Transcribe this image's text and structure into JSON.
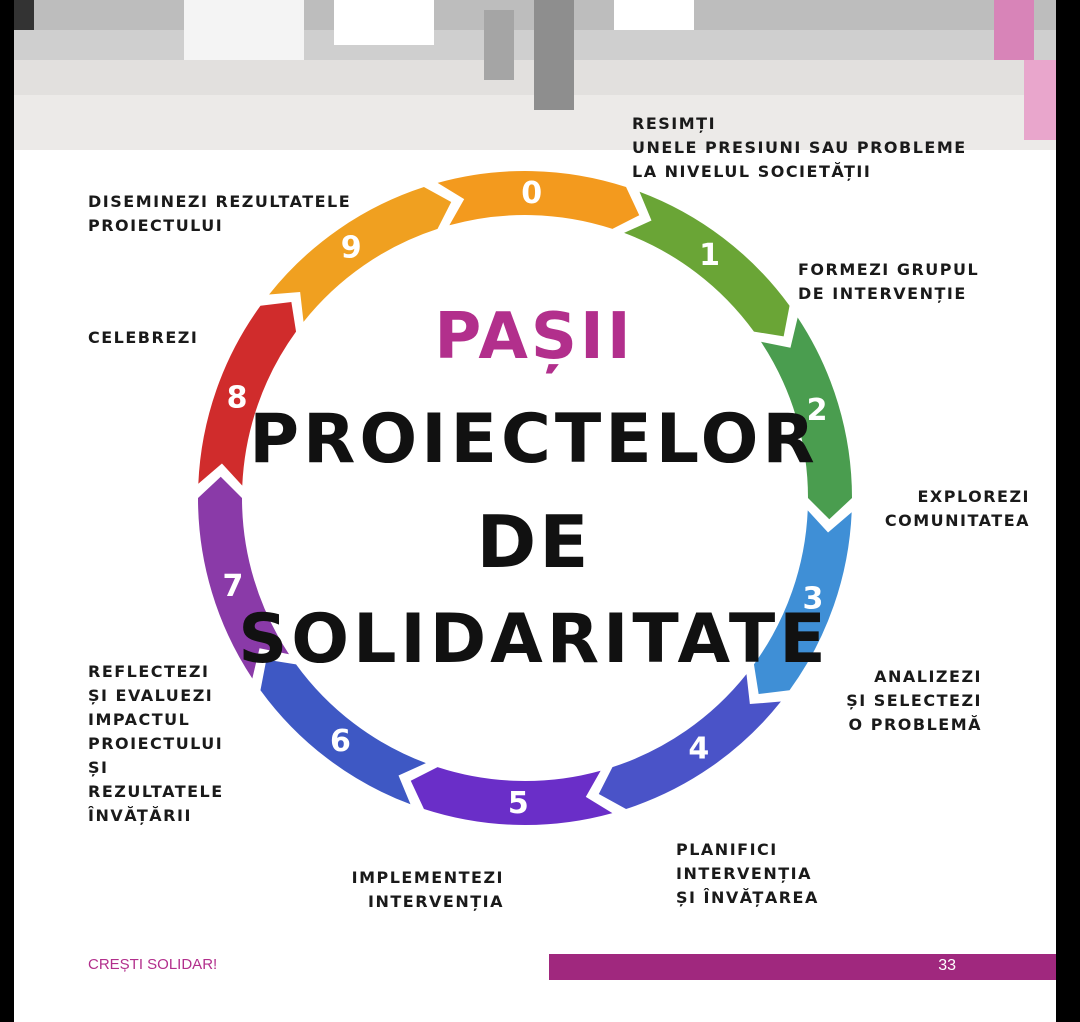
{
  "diagram": {
    "title_line1": "PAȘII",
    "title_line2": "PROIECTELOR",
    "title_line3": "DE",
    "title_line4": "SOLIDARITATE",
    "title_color": "#b22f8c",
    "steps": [
      {
        "number": "0",
        "lines": [
          "RESIMȚI",
          "UNELE PRESIUNI SAU PROBLEME",
          "LA NIVELUL SOCIETĂȚII"
        ],
        "color": "#f39a1e"
      },
      {
        "number": "1",
        "lines": [
          "FORMEZI GRUPUL",
          "DE INTERVENȚIE"
        ],
        "color": "#6aa536"
      },
      {
        "number": "2",
        "lines": [
          "EXPLOREZI",
          "COMUNITATEA"
        ],
        "color": "#4a9d4f"
      },
      {
        "number": "3",
        "lines": [
          "ANALIZEZI",
          "ȘI SELECTEZI",
          "O PROBLEMĂ"
        ],
        "color": "#3f8fd6"
      },
      {
        "number": "4",
        "lines": [
          "PLANIFICI",
          "INTERVENȚIA",
          "ȘI ÎNVĂȚAREA"
        ],
        "color": "#4a53c8"
      },
      {
        "number": "5",
        "lines": [
          "IMPLEMENTEZI",
          "INTERVENȚIA"
        ],
        "color": "#6a2ec8"
      },
      {
        "number": "6",
        "lines": [
          "REFLECTEZI",
          "ȘI EVALUEZI",
          "IMPACTUL",
          "PROIECTULUI",
          "ȘI",
          "REZULTATELE",
          "ÎNVĂȚĂRII"
        ],
        "color": "#3e58c4"
      },
      {
        "number": "7",
        "lines": [],
        "color": "#8a3aa8"
      },
      {
        "number": "8",
        "lines": [
          "CELEBREZI"
        ],
        "color": "#d02c2c"
      },
      {
        "number": "9",
        "lines": [
          "DISEMINEZI REZULTATELE",
          "PROIECTULUI"
        ],
        "color": "#f0a020"
      }
    ]
  },
  "footer": {
    "brand": "CREȘTI SOLIDAR!",
    "page_number": "33",
    "accent_color": "#a0287e"
  }
}
